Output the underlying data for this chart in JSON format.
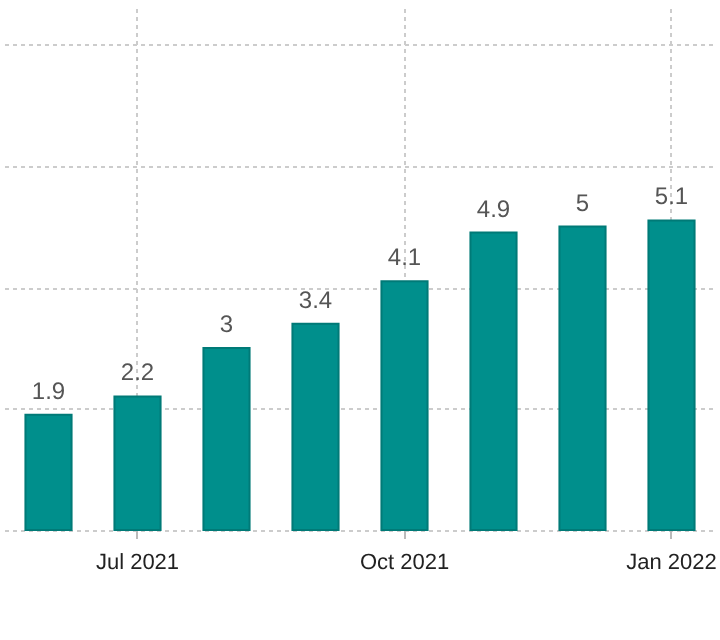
{
  "chart_data": {
    "type": "bar",
    "categories": [
      null,
      "Jul 2021",
      null,
      null,
      "Oct 2021",
      null,
      null,
      "Jan 2022"
    ],
    "values": [
      1.9,
      2.2,
      3,
      3.4,
      4.1,
      4.9,
      5,
      5.1
    ],
    "color": "#008f8c",
    "ylim": [
      0,
      8.6
    ],
    "yticks": [
      {
        "value": 0,
        "label": null
      },
      {
        "value": 2,
        "label": null
      },
      {
        "value": 4,
        "label": null
      },
      {
        "value": 6,
        "label": null
      },
      {
        "value": 8,
        "label": null
      }
    ],
    "tick_labels": "x",
    "grid": true,
    "data_labels": true
  }
}
